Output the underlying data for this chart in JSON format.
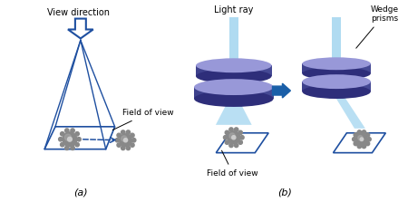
{
  "bg_color": "#ffffff",
  "blue_dark": "#1E4FA0",
  "blue_medium": "#2B5FA5",
  "prism_color": "#5055A0",
  "prism_dark": "#2E2E7A",
  "prism_light": "#8888CC",
  "prism_highlight": "#9898D8",
  "light_ray_color": "#A8D8F0",
  "arrow_color": "#1A5FA8",
  "fov_line_color": "#1E4FA0",
  "gear_color": "#888888",
  "gear_light": "#AAAAAA",
  "gear_dark": "#666666",
  "text_color": "#000000",
  "label_a": "(a)",
  "label_b": "(b)",
  "title_view": "View direction",
  "title_light": "Light ray",
  "title_wedge": "Wedge\nprisms",
  "title_fov_a": "Field of view",
  "title_fov_b": "Field of view"
}
